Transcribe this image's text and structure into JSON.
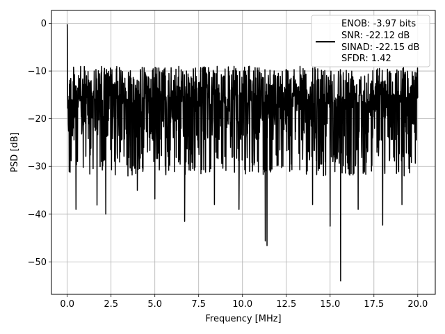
{
  "chart_data": {
    "type": "line",
    "title": "",
    "xlabel": "Frequency [MHz]",
    "ylabel": "PSD [dB]",
    "xlim": [
      -0.9,
      21.0
    ],
    "ylim": [
      -56.8,
      2.7
    ],
    "grid": true,
    "x_ticks": [
      0.0,
      2.5,
      5.0,
      7.5,
      10.0,
      12.5,
      15.0,
      17.5,
      20.0
    ],
    "x_tick_labels": [
      "0.0",
      "2.5",
      "5.0",
      "7.5",
      "10.0",
      "12.5",
      "15.0",
      "17.5",
      "20.0"
    ],
    "y_ticks": [
      0,
      -10,
      -20,
      -30,
      -40,
      -50
    ],
    "y_tick_labels": [
      "0",
      "−10",
      "−20",
      "−30",
      "−40",
      "−50"
    ],
    "legend": {
      "placement": "upper-right",
      "lines": [
        "ENOB: -3.97 bits",
        "SNR: -22.12 dB",
        "SINAD: -22.15 dB",
        "SFDR: 1.42"
      ]
    },
    "series": [
      {
        "color": "#000000",
        "x_range": [
          0.0,
          20.0
        ],
        "points": 1600,
        "dense_band": [
          -9.0,
          -30.0
        ],
        "initial_peak": [
          0.0,
          -0.2
        ],
        "dips": [
          [
            0.5,
            -39.0
          ],
          [
            1.7,
            -38.1
          ],
          [
            2.2,
            -40.0
          ],
          [
            4.0,
            -35.0
          ],
          [
            5.0,
            -36.8
          ],
          [
            6.7,
            -41.5
          ],
          [
            8.4,
            -38.0
          ],
          [
            9.8,
            -39.0
          ],
          [
            11.3,
            -45.6
          ],
          [
            11.4,
            -46.6
          ],
          [
            14.0,
            -38.0
          ],
          [
            15.0,
            -42.5
          ],
          [
            15.6,
            -54.0
          ],
          [
            16.6,
            -39.0
          ],
          [
            18.0,
            -42.3
          ],
          [
            19.1,
            -38.0
          ]
        ]
      }
    ]
  }
}
